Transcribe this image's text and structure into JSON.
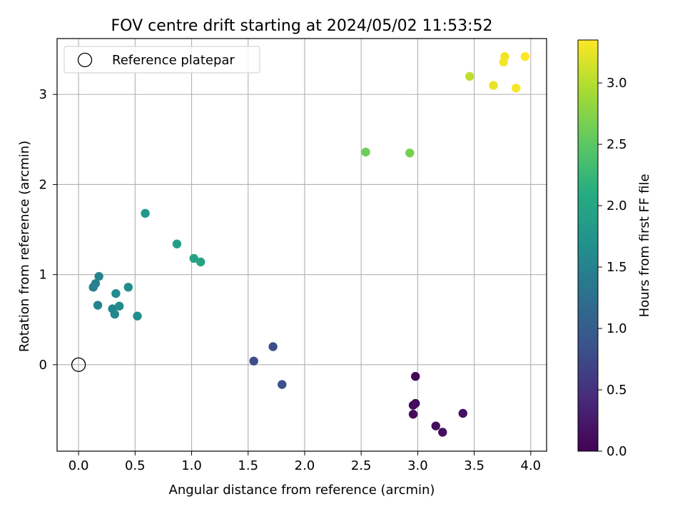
{
  "chart_data": {
    "type": "scatter",
    "title": "FOV centre drift starting at 2024/05/02 11:53:52",
    "xlabel": "Angular distance from reference (arcmin)",
    "ylabel": "Rotation from reference (arcmin)",
    "xlim": [
      -0.19,
      4.14
    ],
    "ylim": [
      -0.96,
      3.62
    ],
    "x_ticks": [
      0.0,
      0.5,
      1.0,
      1.5,
      2.0,
      2.5,
      3.0,
      3.5,
      4.0
    ],
    "x_tick_labels": [
      "0.0",
      "0.5",
      "1.0",
      "1.5",
      "2.0",
      "2.5",
      "3.0",
      "3.5",
      "4.0"
    ],
    "y_ticks": [
      0,
      1,
      2,
      3
    ],
    "y_tick_labels": [
      "0",
      "1",
      "2",
      "3"
    ],
    "grid": true,
    "legend": {
      "position": "top-left",
      "entries": [
        "Reference platepar"
      ]
    },
    "reference_point": {
      "x": 0.0,
      "y": 0.0
    },
    "colorbar": {
      "label": "Hours from first FF file",
      "colormap": "viridis",
      "range": [
        0.0,
        3.35
      ],
      "ticks": [
        0.0,
        0.5,
        1.0,
        1.5,
        2.0,
        2.5,
        3.0
      ],
      "tick_labels": [
        "0.0",
        "0.5",
        "1.0",
        "1.5",
        "2.0",
        "2.5",
        "3.0"
      ]
    },
    "points": [
      {
        "x": 2.98,
        "y": -0.13,
        "t": 0.05
      },
      {
        "x": 2.96,
        "y": -0.45,
        "t": 0.07
      },
      {
        "x": 2.98,
        "y": -0.43,
        "t": 0.09
      },
      {
        "x": 2.96,
        "y": -0.55,
        "t": 0.1
      },
      {
        "x": 3.16,
        "y": -0.68,
        "t": 0.12
      },
      {
        "x": 3.22,
        "y": -0.75,
        "t": 0.14
      },
      {
        "x": 3.4,
        "y": -0.54,
        "t": 0.16
      },
      {
        "x": 1.55,
        "y": 0.04,
        "t": 0.8
      },
      {
        "x": 1.72,
        "y": 0.2,
        "t": 0.82
      },
      {
        "x": 1.8,
        "y": -0.22,
        "t": 0.84
      },
      {
        "x": 0.13,
        "y": 0.86,
        "t": 1.45
      },
      {
        "x": 0.15,
        "y": 0.9,
        "t": 1.47
      },
      {
        "x": 0.18,
        "y": 0.98,
        "t": 1.5
      },
      {
        "x": 0.17,
        "y": 0.66,
        "t": 1.52
      },
      {
        "x": 0.3,
        "y": 0.62,
        "t": 1.55
      },
      {
        "x": 0.32,
        "y": 0.56,
        "t": 1.57
      },
      {
        "x": 0.36,
        "y": 0.65,
        "t": 1.6
      },
      {
        "x": 0.33,
        "y": 0.79,
        "t": 1.62
      },
      {
        "x": 0.44,
        "y": 0.86,
        "t": 1.64
      },
      {
        "x": 0.52,
        "y": 0.54,
        "t": 1.66
      },
      {
        "x": 0.59,
        "y": 1.68,
        "t": 1.8
      },
      {
        "x": 0.87,
        "y": 1.34,
        "t": 1.9
      },
      {
        "x": 1.02,
        "y": 1.18,
        "t": 1.95
      },
      {
        "x": 1.08,
        "y": 1.14,
        "t": 1.98
      },
      {
        "x": 2.54,
        "y": 2.36,
        "t": 2.62
      },
      {
        "x": 2.93,
        "y": 2.35,
        "t": 2.66
      },
      {
        "x": 3.46,
        "y": 3.2,
        "t": 3.05
      },
      {
        "x": 3.67,
        "y": 3.1,
        "t": 3.25
      },
      {
        "x": 3.77,
        "y": 3.42,
        "t": 3.28
      },
      {
        "x": 3.76,
        "y": 3.36,
        "t": 3.3
      },
      {
        "x": 3.87,
        "y": 3.07,
        "t": 3.32
      },
      {
        "x": 3.95,
        "y": 3.42,
        "t": 3.35
      }
    ]
  }
}
